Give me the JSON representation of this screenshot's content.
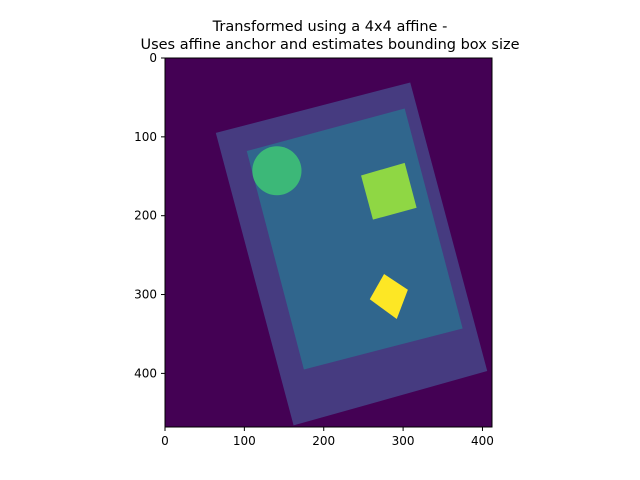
{
  "chart_data": {
    "type": "heatmap",
    "title_lines": [
      "Transformed using a 4x4 affine -",
      "Uses affine anchor and estimates bounding box size"
    ],
    "xlabel": "",
    "ylabel": "",
    "xlim": [
      0,
      412
    ],
    "ylim": [
      468,
      0
    ],
    "y_inverted": true,
    "grid": false,
    "x_ticks": [
      0,
      100,
      200,
      300,
      400
    ],
    "y_ticks": [
      0,
      100,
      200,
      300,
      400
    ],
    "colormap": "viridis",
    "colors": {
      "background": "#440154",
      "outer_rectangle": "#463b80",
      "inner_rectangle": "#30668d",
      "circle": "#3cb878",
      "large_square": "#8fd744",
      "small_square": "#fde725"
    },
    "regions": [
      {
        "name": "outer rectangle",
        "corners": [
          [
            64,
            95
          ],
          [
            309,
            31
          ],
          [
            406,
            397
          ],
          [
            162,
            466
          ]
        ]
      },
      {
        "name": "inner rectangle",
        "corners": [
          [
            103,
            118
          ],
          [
            302,
            64
          ],
          [
            375,
            343
          ],
          [
            175,
            395
          ]
        ]
      },
      {
        "name": "circle",
        "center": [
          141,
          143
        ],
        "radius": 31
      },
      {
        "name": "large square",
        "corners": [
          [
            247,
            149
          ],
          [
            302,
            133
          ],
          [
            317,
            190
          ],
          [
            262,
            205
          ]
        ]
      },
      {
        "name": "small square",
        "corners": [
          [
            276,
            274
          ],
          [
            306,
            294
          ],
          [
            292,
            331
          ],
          [
            258,
            306
          ]
        ]
      }
    ]
  }
}
